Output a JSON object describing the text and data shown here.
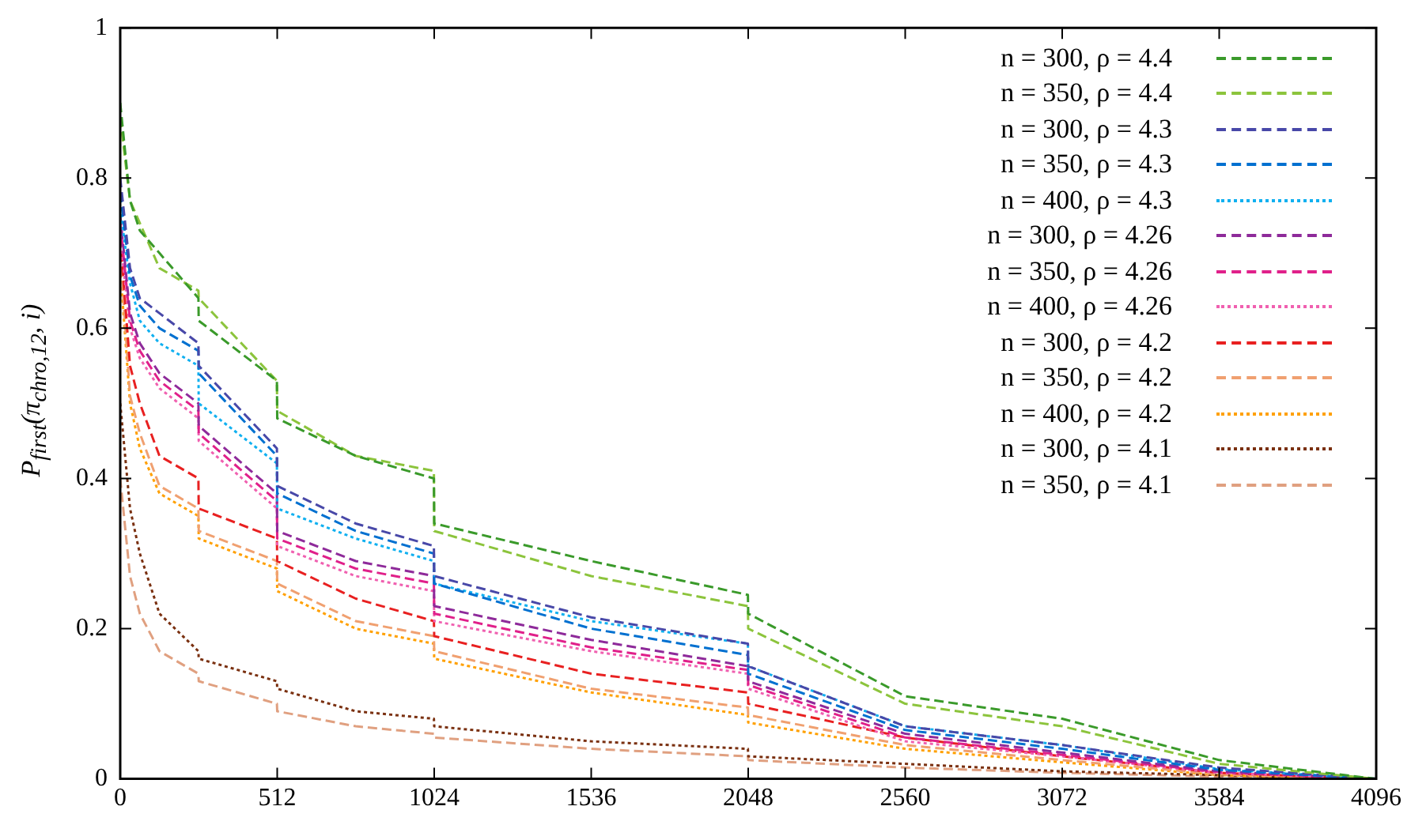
{
  "chart_data": {
    "type": "line",
    "ylabel": "P$_{first}$(π$_{chro,12}$, i)",
    "x": [
      0,
      32,
      64,
      128,
      255,
      256,
      511,
      512,
      768,
      1023,
      1024,
      1536,
      2047,
      2048,
      2560,
      3072,
      3584,
      4096
    ],
    "xlim": [
      0,
      4096
    ],
    "xticks": [
      0,
      512,
      1024,
      1536,
      2048,
      2560,
      3072,
      3584,
      4096
    ],
    "ylim": [
      0,
      1
    ],
    "yticks": [
      0,
      0.2,
      0.4,
      0.6,
      0.8,
      1
    ],
    "grid": false,
    "legend": "top right",
    "marker": "none",
    "series": [
      {
        "name": "n = 300, ρ = 4.4",
        "color": "#3a9a2a",
        "line_style": "dashed",
        "values": [
          0.9,
          0.77,
          0.73,
          0.7,
          0.64,
          0.61,
          0.53,
          0.48,
          0.43,
          0.4,
          0.34,
          0.29,
          0.245,
          0.22,
          0.11,
          0.08,
          0.025,
          0
        ]
      },
      {
        "name": "n = 350, ρ = 4.4",
        "color": "#8cc43c",
        "line_style": "dashed",
        "values": [
          0.88,
          0.77,
          0.74,
          0.68,
          0.65,
          0.64,
          0.53,
          0.49,
          0.43,
          0.41,
          0.33,
          0.27,
          0.23,
          0.2,
          0.1,
          0.07,
          0.02,
          0
        ]
      },
      {
        "name": "n = 300, ρ = 4.3",
        "color": "#4848a8",
        "line_style": "dashed",
        "values": [
          0.8,
          0.68,
          0.64,
          0.62,
          0.58,
          0.55,
          0.44,
          0.39,
          0.34,
          0.31,
          0.27,
          0.215,
          0.18,
          0.15,
          0.07,
          0.045,
          0.015,
          0
        ]
      },
      {
        "name": "n = 350, ρ = 4.3",
        "color": "#0070d0",
        "line_style": "dashed",
        "values": [
          0.78,
          0.67,
          0.63,
          0.6,
          0.57,
          0.54,
          0.43,
          0.38,
          0.33,
          0.3,
          0.26,
          0.2,
          0.165,
          0.14,
          0.065,
          0.04,
          0.012,
          0
        ]
      },
      {
        "name": "n = 400, ρ = 4.3",
        "color": "#10b0f0",
        "line_style": "dotted",
        "values": [
          0.76,
          0.66,
          0.61,
          0.58,
          0.55,
          0.5,
          0.42,
          0.36,
          0.32,
          0.29,
          0.26,
          0.21,
          0.18,
          0.15,
          0.07,
          0.045,
          0.013,
          0
        ]
      },
      {
        "name": "n = 300, ρ = 4.26",
        "color": "#8e2a9a",
        "line_style": "dashed",
        "values": [
          0.75,
          0.62,
          0.58,
          0.54,
          0.5,
          0.47,
          0.38,
          0.33,
          0.29,
          0.27,
          0.23,
          0.185,
          0.15,
          0.13,
          0.06,
          0.035,
          0.01,
          0
        ]
      },
      {
        "name": "n = 350, ρ = 4.26",
        "color": "#e0208a",
        "line_style": "dashed",
        "values": [
          0.74,
          0.61,
          0.57,
          0.53,
          0.49,
          0.46,
          0.37,
          0.32,
          0.28,
          0.26,
          0.22,
          0.175,
          0.145,
          0.125,
          0.055,
          0.032,
          0.009,
          0
        ]
      },
      {
        "name": "n = 400, ρ = 4.26",
        "color": "#f060b0",
        "line_style": "dotted",
        "values": [
          0.72,
          0.6,
          0.56,
          0.52,
          0.48,
          0.45,
          0.36,
          0.31,
          0.27,
          0.25,
          0.21,
          0.17,
          0.14,
          0.12,
          0.05,
          0.03,
          0.008,
          0
        ]
      },
      {
        "name": "n = 300, ρ = 4.2",
        "color": "#e82020",
        "line_style": "dashed",
        "values": [
          0.72,
          0.55,
          0.5,
          0.43,
          0.4,
          0.36,
          0.32,
          0.29,
          0.24,
          0.21,
          0.19,
          0.14,
          0.115,
          0.1,
          0.055,
          0.03,
          0.008,
          0
        ]
      },
      {
        "name": "n = 350, ρ = 4.2",
        "color": "#f0a070",
        "line_style": "dashed",
        "values": [
          0.7,
          0.51,
          0.46,
          0.39,
          0.36,
          0.33,
          0.29,
          0.26,
          0.21,
          0.19,
          0.17,
          0.12,
          0.095,
          0.085,
          0.045,
          0.025,
          0.006,
          0
        ]
      },
      {
        "name": "n = 400, ρ = 4.2",
        "color": "#ffa000",
        "line_style": "dotted",
        "values": [
          0.68,
          0.5,
          0.44,
          0.38,
          0.35,
          0.32,
          0.28,
          0.25,
          0.2,
          0.18,
          0.16,
          0.115,
          0.085,
          0.075,
          0.04,
          0.022,
          0.005,
          0
        ]
      },
      {
        "name": "n = 300, ρ = 4.1",
        "color": "#7a3010",
        "line_style": "dotted",
        "values": [
          0.5,
          0.36,
          0.3,
          0.22,
          0.17,
          0.16,
          0.13,
          0.12,
          0.09,
          0.08,
          0.07,
          0.05,
          0.04,
          0.03,
          0.02,
          0.01,
          0.005,
          0
        ]
      },
      {
        "name": "n = 350, ρ = 4.1",
        "color": "#e0a080",
        "line_style": "dashed",
        "values": [
          0.4,
          0.27,
          0.22,
          0.17,
          0.14,
          0.13,
          0.1,
          0.09,
          0.07,
          0.06,
          0.055,
          0.04,
          0.03,
          0.025,
          0.015,
          0.008,
          0.003,
          0
        ]
      }
    ]
  }
}
